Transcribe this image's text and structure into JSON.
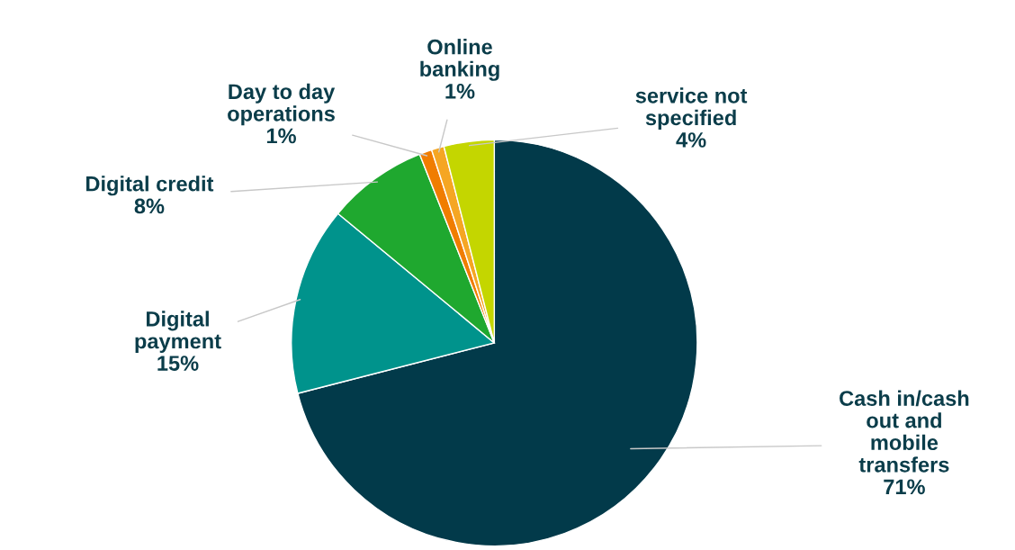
{
  "chart_data": {
    "type": "pie",
    "categories": [
      "Cash in/cash\nout and\nmobile\ntransfers",
      "Digital\npayment\n",
      "Digital credit",
      "Day to day\noperations",
      "Online\nbanking",
      "service not\nspecified"
    ],
    "values": [
      71,
      15,
      8,
      1,
      1,
      4
    ],
    "value_labels": [
      "71%",
      "15%",
      "8%",
      "1%",
      "1%",
      "4%"
    ],
    "colors": [
      "#023a4a",
      "#00938c",
      "#1fa82f",
      "#f07d00",
      "#f5a623",
      "#c4d600"
    ],
    "legend": false
  }
}
